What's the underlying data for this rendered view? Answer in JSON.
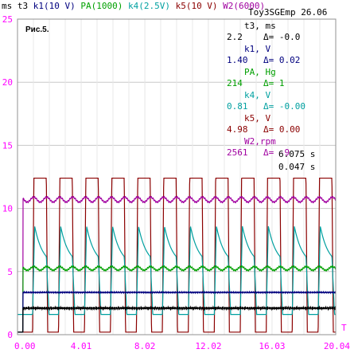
{
  "header": {
    "items": [
      {
        "text": "ms",
        "color": "#000000"
      },
      {
        "text": "t3",
        "color": "#000000"
      },
      {
        "text": "k1(10 V)",
        "color": "#00007f"
      },
      {
        "text": "PA(1000)",
        "color": "#00a000"
      },
      {
        "text": "k4(2.5V)",
        "color": "#00a0a0"
      },
      {
        "text": "k5(10 V)",
        "color": "#8b0000"
      },
      {
        "text": "W2(6000)",
        "color": "#a000a0"
      }
    ]
  },
  "subtitle": "Toy3SGEmp 26.06",
  "fig_label": "Рис.5.",
  "axis_end_label": "T",
  "readout": {
    "rows": [
      {
        "label": "t3, ms",
        "value": "2.2",
        "delta": "Δ= -0.0",
        "color": "#000000",
        "label_color": "#000000"
      },
      {
        "label": "k1,  V",
        "value": "1.40",
        "delta": "Δ=  0.02",
        "color": "#00007f",
        "label_color": "#00007f"
      },
      {
        "label": "PA, Hg",
        "value": "214",
        "delta": "Δ=    1",
        "color": "#00a000",
        "label_color": "#00a000"
      },
      {
        "label": "k4,  V",
        "value": "0.81",
        "delta": "Δ= -0.00",
        "color": "#00a0a0",
        "label_color": "#00a0a0"
      },
      {
        "label": "k5,  V",
        "value": "4.98",
        "delta": "Δ=  0.00",
        "color": "#8b0000",
        "label_color": "#8b0000"
      },
      {
        "label": "W2,rpm",
        "value": "2561",
        "delta": "Δ=   -9",
        "color": "#a000a0",
        "label_color": "#a000a0"
      }
    ],
    "time1": "6.075 s",
    "time2": "0.047 s"
  },
  "chart_data": {
    "type": "line",
    "xlim": [
      0,
      20.04
    ],
    "ylim": [
      0,
      25
    ],
    "x_ticks": [
      "0.00",
      "4.01",
      "8.02",
      "12.02",
      "16.03",
      "20.04"
    ],
    "y_ticks": [
      "0",
      "5",
      "10",
      "15",
      "20",
      "25"
    ],
    "grid": true,
    "pulses": {
      "count": 12,
      "first_start": 0.95,
      "period": 1.635,
      "duty": 0.53
    },
    "series": [
      {
        "name": "k5(10 V)",
        "color": "#8b0000",
        "low": 0.2,
        "high": 12.4,
        "shape": "square"
      },
      {
        "name": "k4(2.5V)",
        "color": "#00a0a0",
        "low": 1.6,
        "high": 8.6,
        "shape": "decay"
      },
      {
        "name": "W2(6000)",
        "color": "#a000a0",
        "base": 10.7,
        "ripple": 0.2,
        "shape": "ripple"
      },
      {
        "name": "PA(1000)",
        "color": "#00a000",
        "base": 5.25,
        "ripple": 0.15,
        "shape": "ripple"
      },
      {
        "name": "k1(10 V)",
        "color": "#00007f",
        "base": 3.35,
        "ripple": 0.05,
        "shape": "flat"
      },
      {
        "name": "t3",
        "color": "#000000",
        "base": 2.1,
        "ripple": 0.1,
        "shape": "flat"
      }
    ]
  }
}
